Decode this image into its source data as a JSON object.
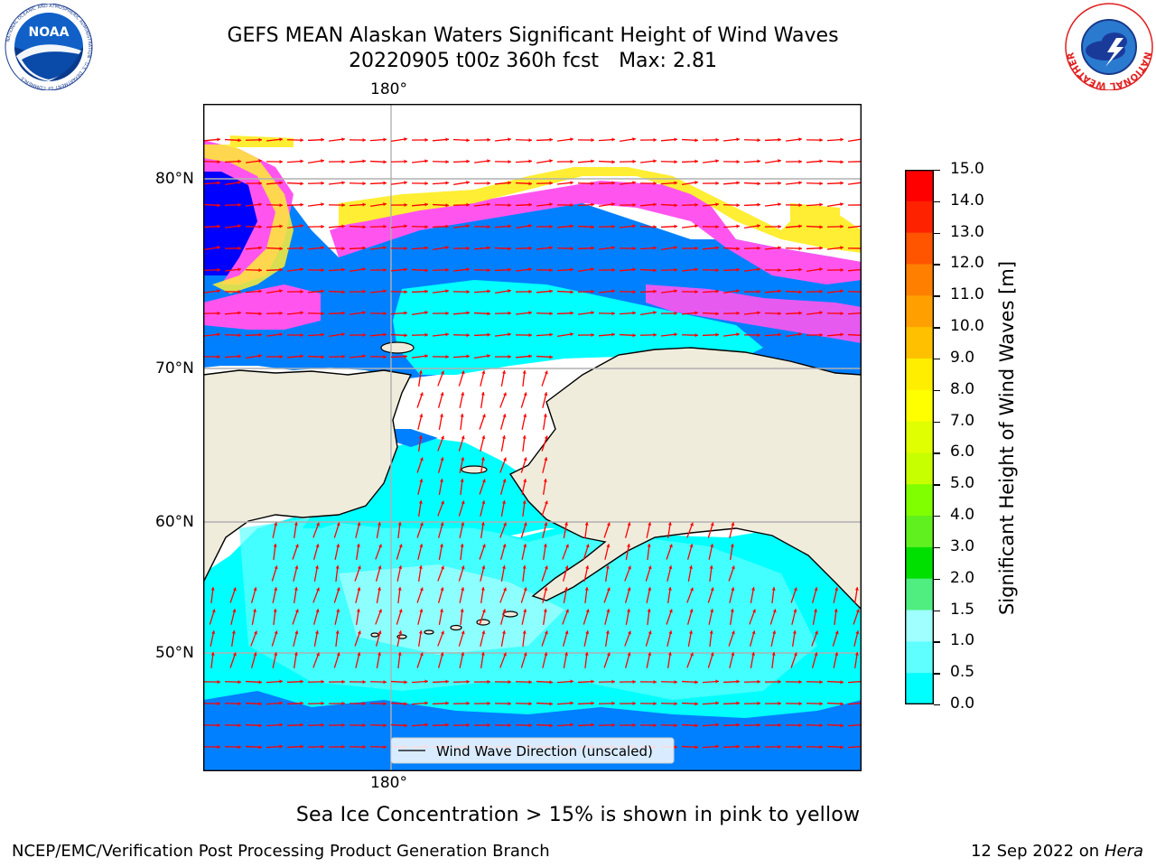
{
  "title": {
    "line1": "GEFS MEAN Alaskan Waters Significant Height of Wind Waves",
    "line2_run": "20220905 t00z 360h fcst",
    "line2_max": "Max: 2.81"
  },
  "map": {
    "lon_labels": {
      "top": "180°",
      "bottom": "180°"
    },
    "lat_labels": [
      "80°N",
      "70°N",
      "60°N",
      "50°N"
    ],
    "legend_label": "Wind Wave Direction (unscaled)",
    "arrow_color": "#ff0000",
    "land_color": "#efecdc",
    "ocean_colors": {
      "deep_blue": "#0000ff",
      "blue": "#0080ff",
      "cyan": "#00ffff",
      "light_cyan": "#44ffff",
      "pale_cyan": "#a0ffff",
      "ice_pink": "#ff55ee",
      "ice_yellow": "#ffee33"
    }
  },
  "colorbar": {
    "title": "Significant Height of Wind Waves [m]",
    "tick_labels": [
      "15.0",
      "14.0",
      "13.0",
      "12.0",
      "11.0",
      "10.0",
      "9.0",
      "8.0",
      "7.0",
      "6.0",
      "5.0",
      "4.0",
      "3.0",
      "2.0",
      "1.5",
      "1.0",
      "0.5",
      "0.0"
    ],
    "colors_top_to_bottom": [
      "#ff0000",
      "#ff2200",
      "#ff5500",
      "#ff8000",
      "#ffa000",
      "#ffc000",
      "#ffee00",
      "#ffff00",
      "#e0ff00",
      "#c8ff00",
      "#80ff00",
      "#60f020",
      "#00e000",
      "#50ee80",
      "#a0ffff",
      "#60ffff",
      "#00ffff",
      "#0080ff",
      "#0000ff"
    ]
  },
  "notes": {
    "ice": "Sea Ice Concentration > 15% is shown in pink to yellow"
  },
  "footer": {
    "left": "NCEP/EMC/Verification Post Processing Product Generation Branch",
    "right_date": "12 Sep 2022 on",
    "right_host": "Hera"
  },
  "logos": {
    "noaa_text": "NOAA",
    "noaa_ring_text": "NATIONAL OCEANIC AND ATMOSPHERIC ADMINISTRATION · U.S. DEPARTMENT OF COMMERCE",
    "nws_ring_text": "NATIONAL WEATHER SERVICE"
  }
}
